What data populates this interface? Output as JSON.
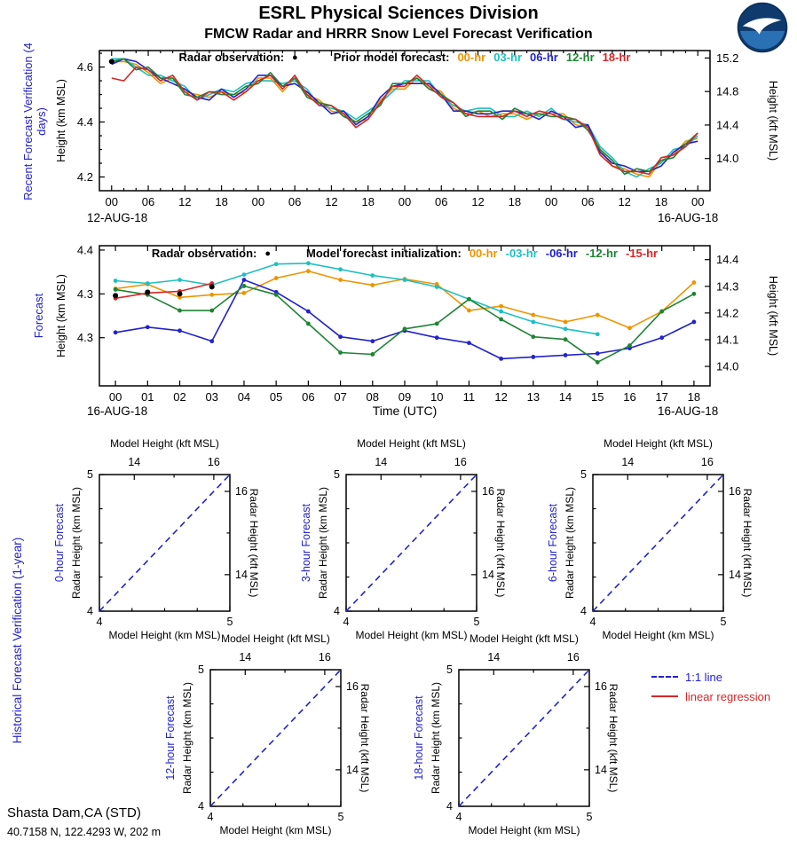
{
  "header": {
    "title": "ESRL Physical Sciences Division",
    "subtitle": "FMCW Radar and HRRR Snow Level Forecast Verification"
  },
  "station": {
    "name": "Shasta Dam,CA (STD)",
    "details": "40.7158 N, 122.4293 W, 202 m"
  },
  "legend_box": {
    "items": [
      {
        "label": "1:1 line",
        "color": "#2222cc",
        "style": "dashed"
      },
      {
        "label": "linear regression",
        "color": "#d62728",
        "style": "solid"
      }
    ]
  },
  "chart_data": {
    "recent_verification": {
      "type": "line",
      "side_label": "Recent Forecast Verification (4 days)",
      "ylabel": "Height (km MSL)",
      "ylabel_right": "Height (kft MSL)",
      "legend_obs_label": "Radar observation:",
      "legend_series_label": "Prior model forecast:",
      "date_left": "12-AUG-18",
      "date_right": "16-AUG-18",
      "xlim": [
        -2,
        98
      ],
      "ylim": [
        4.15,
        4.66
      ],
      "x": [
        0,
        2,
        4,
        6,
        8,
        10,
        12,
        14,
        16,
        18,
        20,
        22,
        24,
        26,
        28,
        30,
        32,
        34,
        36,
        38,
        40,
        42,
        44,
        46,
        48,
        50,
        52,
        54,
        56,
        58,
        60,
        62,
        64,
        66,
        68,
        70,
        72,
        74,
        76,
        78,
        80,
        82,
        84,
        86,
        88,
        90,
        92,
        94,
        96
      ],
      "xticks": [
        {
          "v": 0,
          "label": "00"
        },
        {
          "v": 6,
          "label": "06"
        },
        {
          "v": 12,
          "label": "12"
        },
        {
          "v": 18,
          "label": "18"
        },
        {
          "v": 24,
          "label": "00"
        },
        {
          "v": 30,
          "label": "06"
        },
        {
          "v": 36,
          "label": "12"
        },
        {
          "v": 42,
          "label": "18"
        },
        {
          "v": 48,
          "label": "00"
        },
        {
          "v": 54,
          "label": "06"
        },
        {
          "v": 60,
          "label": "12"
        },
        {
          "v": 66,
          "label": "18"
        },
        {
          "v": 72,
          "label": "00"
        },
        {
          "v": 78,
          "label": "06"
        },
        {
          "v": 84,
          "label": "12"
        },
        {
          "v": 90,
          "label": "18"
        },
        {
          "v": 96,
          "label": "00"
        }
      ],
      "yticks_left": [
        {
          "v": 4.2,
          "label": "4.2"
        },
        {
          "v": 4.4,
          "label": "4.4"
        },
        {
          "v": 4.6,
          "label": "4.6"
        }
      ],
      "yticks_right": [
        {
          "v": 4.2672,
          "label": "14.0"
        },
        {
          "v": 4.3891,
          "label": "14.4"
        },
        {
          "v": 4.511,
          "label": "14.8"
        },
        {
          "v": 4.633,
          "label": "15.2"
        }
      ],
      "obs": {
        "label": "Radar observation",
        "marker": "●",
        "color": "#000000",
        "x": [
          0
        ],
        "y": [
          4.62
        ]
      },
      "series": [
        {
          "label": "00-hr",
          "color": "#ee9400",
          "y": [
            4.62,
            4.62,
            4.61,
            4.58,
            4.54,
            4.56,
            4.51,
            4.5,
            4.49,
            4.51,
            4.5,
            4.51,
            4.56,
            4.56,
            4.51,
            4.56,
            4.5,
            4.48,
            4.44,
            4.43,
            4.4,
            4.41,
            4.48,
            4.52,
            4.52,
            4.56,
            4.53,
            4.51,
            4.45,
            4.43,
            4.44,
            4.42,
            4.43,
            4.43,
            4.41,
            4.43,
            4.43,
            4.43,
            4.39,
            4.38,
            4.3,
            4.24,
            4.23,
            4.21,
            4.2,
            4.26,
            4.28,
            4.33,
            4.34
          ]
        },
        {
          "label": "03-hr",
          "color": "#1fbfbf",
          "y": [
            4.63,
            4.63,
            4.6,
            4.57,
            4.57,
            4.55,
            4.53,
            4.48,
            4.5,
            4.52,
            4.51,
            4.54,
            4.55,
            4.55,
            4.54,
            4.55,
            4.52,
            4.46,
            4.45,
            4.44,
            4.41,
            4.44,
            4.47,
            4.51,
            4.55,
            4.55,
            4.55,
            4.49,
            4.46,
            4.44,
            4.45,
            4.45,
            4.42,
            4.42,
            4.44,
            4.42,
            4.45,
            4.41,
            4.4,
            4.39,
            4.31,
            4.27,
            4.22,
            4.2,
            4.23,
            4.25,
            4.3,
            4.31,
            4.35
          ]
        },
        {
          "label": "06-hr",
          "color": "#2222cc",
          "y": [
            4.61,
            4.63,
            4.62,
            4.59,
            4.56,
            4.54,
            4.52,
            4.49,
            4.48,
            4.52,
            4.49,
            4.52,
            4.57,
            4.57,
            4.53,
            4.54,
            4.51,
            4.47,
            4.43,
            4.44,
            4.39,
            4.42,
            4.49,
            4.53,
            4.54,
            4.54,
            4.54,
            4.5,
            4.44,
            4.44,
            4.43,
            4.43,
            4.44,
            4.44,
            4.43,
            4.41,
            4.44,
            4.42,
            4.38,
            4.39,
            4.29,
            4.25,
            4.24,
            4.22,
            4.22,
            4.24,
            4.29,
            4.32,
            4.33
          ]
        },
        {
          "label": "12-hr",
          "color": "#1e8434",
          "y": [
            4.62,
            4.63,
            4.59,
            4.6,
            4.56,
            4.56,
            4.5,
            4.49,
            4.51,
            4.5,
            4.5,
            4.53,
            4.54,
            4.58,
            4.53,
            4.56,
            4.49,
            4.47,
            4.46,
            4.42,
            4.4,
            4.43,
            4.46,
            4.54,
            4.54,
            4.56,
            4.52,
            4.5,
            4.47,
            4.42,
            4.44,
            4.44,
            4.41,
            4.45,
            4.43,
            4.43,
            4.42,
            4.42,
            4.41,
            4.37,
            4.3,
            4.26,
            4.21,
            4.23,
            4.22,
            4.26,
            4.27,
            4.32,
            4.36
          ]
        },
        {
          "label": "18-hr",
          "color": "#d62728",
          "y": [
            4.56,
            4.55,
            4.6,
            4.59,
            4.55,
            4.57,
            4.51,
            4.48,
            4.51,
            4.51,
            4.48,
            4.51,
            4.55,
            4.57,
            4.52,
            4.57,
            4.5,
            4.46,
            4.46,
            4.43,
            4.38,
            4.41,
            4.47,
            4.53,
            4.53,
            4.57,
            4.53,
            4.49,
            4.47,
            4.43,
            4.42,
            4.42,
            4.42,
            4.44,
            4.42,
            4.44,
            4.43,
            4.41,
            4.41,
            4.38,
            4.28,
            4.24,
            4.22,
            4.22,
            4.21,
            4.27,
            4.28,
            4.31,
            4.36
          ]
        }
      ]
    },
    "forecast": {
      "type": "line",
      "side_label": "Forecast",
      "ylabel": "Height (km MSL)",
      "ylabel_right": "Height (kft MSL)",
      "xlabel": "Time (UTC)",
      "legend_obs_label": "Radar observation:",
      "legend_series_label": "Model forecast initialization:",
      "date_left": "16-AUG-18",
      "date_right": "16-AUG-18",
      "xlim": [
        -0.5,
        18.5
      ],
      "ylim": [
        4.245,
        4.405
      ],
      "xticks": [
        {
          "v": 0,
          "label": "00"
        },
        {
          "v": 1,
          "label": "01"
        },
        {
          "v": 2,
          "label": "02"
        },
        {
          "v": 3,
          "label": "03"
        },
        {
          "v": 4,
          "label": "04"
        },
        {
          "v": 5,
          "label": "05"
        },
        {
          "v": 6,
          "label": "06"
        },
        {
          "v": 7,
          "label": "07"
        },
        {
          "v": 8,
          "label": "08"
        },
        {
          "v": 9,
          "label": "09"
        },
        {
          "v": 10,
          "label": "10"
        },
        {
          "v": 11,
          "label": "11"
        },
        {
          "v": 12,
          "label": "12"
        },
        {
          "v": 13,
          "label": "13"
        },
        {
          "v": 14,
          "label": "14"
        },
        {
          "v": 15,
          "label": "15"
        },
        {
          "v": 16,
          "label": "16"
        },
        {
          "v": 17,
          "label": "17"
        },
        {
          "v": 18,
          "label": "18"
        }
      ],
      "yticks_left": [
        {
          "v": 4.4,
          "label": "4.4"
        },
        {
          "v": 4.35,
          "label": "4.3"
        },
        {
          "v": 4.3,
          "label": "4.3"
        }
      ],
      "yticks_right": [
        {
          "v": 4.3891,
          "label": "14.4"
        },
        {
          "v": 4.3586,
          "label": "14.3"
        },
        {
          "v": 4.3282,
          "label": "14.2"
        },
        {
          "v": 4.2977,
          "label": "14.1"
        },
        {
          "v": 4.2672,
          "label": "14.0"
        }
      ],
      "obs": {
        "label": "Radar observation",
        "marker": "●",
        "color": "#000000",
        "x": [
          0,
          1,
          2,
          3
        ],
        "y": [
          4.348,
          4.352,
          4.35,
          4.358
        ]
      },
      "series": [
        {
          "label": "00-hr",
          "color": "#ee9400",
          "x": [
            0,
            1,
            2,
            3,
            4,
            5,
            6,
            7,
            8,
            9,
            10,
            11,
            12,
            13,
            14,
            15,
            16,
            17,
            18
          ],
          "y": [
            4.356,
            4.361,
            4.346,
            4.349,
            4.351,
            4.368,
            4.376,
            4.366,
            4.36,
            4.367,
            4.361,
            4.331,
            4.336,
            4.326,
            4.318,
            4.326,
            4.311,
            4.33,
            4.363
          ]
        },
        {
          "label": "-03-hr",
          "color": "#1fbfbf",
          "x": [
            0,
            1,
            2,
            3,
            4,
            5,
            6,
            7,
            8,
            9,
            10,
            11,
            12,
            13,
            14,
            15
          ],
          "y": [
            4.365,
            4.362,
            4.366,
            4.36,
            4.372,
            4.384,
            4.385,
            4.378,
            4.371,
            4.366,
            4.358,
            4.344,
            4.33,
            4.318,
            4.31,
            4.304
          ]
        },
        {
          "label": "-06-hr",
          "color": "#2222cc",
          "x": [
            0,
            1,
            2,
            3,
            4,
            5,
            6,
            7,
            8,
            9,
            10,
            11,
            12,
            13,
            14,
            15,
            16,
            17,
            18
          ],
          "y": [
            4.306,
            4.312,
            4.308,
            4.296,
            4.366,
            4.352,
            4.33,
            4.301,
            4.296,
            4.308,
            4.3,
            4.294,
            4.276,
            4.278,
            4.28,
            4.282,
            4.288,
            4.3,
            4.318
          ]
        },
        {
          "label": "-12-hr",
          "color": "#1e8434",
          "x": [
            0,
            1,
            2,
            3,
            4,
            5,
            6,
            7,
            8,
            9,
            10,
            11,
            12,
            13,
            14,
            15,
            16,
            17,
            18
          ],
          "y": [
            4.355,
            4.349,
            4.331,
            4.331,
            4.359,
            4.349,
            4.316,
            4.283,
            4.281,
            4.31,
            4.316,
            4.344,
            4.321,
            4.301,
            4.298,
            4.272,
            4.291,
            4.33,
            4.35
          ]
        },
        {
          "label": "-15-hr",
          "color": "#d62728",
          "x": [
            0,
            1,
            2,
            3
          ],
          "y": [
            4.345,
            4.351,
            4.353,
            4.362
          ]
        }
      ]
    },
    "historical_scatter": {
      "type": "scatter",
      "side_label": "Historical Forecast Verification (1-year)",
      "xlabel": "Model Height (km MSL)",
      "ylabel": "Radar Height (km MSL)",
      "top_label": "Model Height (kft MSL)",
      "right_label": "Radar Height (kft MSL)",
      "xlim": [
        4,
        5
      ],
      "ylim": [
        4,
        5
      ],
      "xticks": [
        {
          "v": 4,
          "label": "4"
        },
        {
          "v": 5,
          "label": "5"
        }
      ],
      "yticks": [
        {
          "v": 4,
          "label": "4"
        },
        {
          "v": 5,
          "label": "5"
        }
      ],
      "kft_ticks": [
        {
          "v": 4.2672,
          "label": "14"
        },
        {
          "v": 4.8768,
          "label": "16"
        }
      ],
      "one_to_one": [
        [
          4,
          4
        ],
        [
          5,
          5
        ]
      ],
      "panels": [
        {
          "label": "0-hour Forecast",
          "points": []
        },
        {
          "label": "3-hour Forecast",
          "points": []
        },
        {
          "label": "6-hour Forecast",
          "points": []
        },
        {
          "label": "12-hour Forecast",
          "points": []
        },
        {
          "label": "18-hour Forecast",
          "points": []
        }
      ]
    }
  }
}
